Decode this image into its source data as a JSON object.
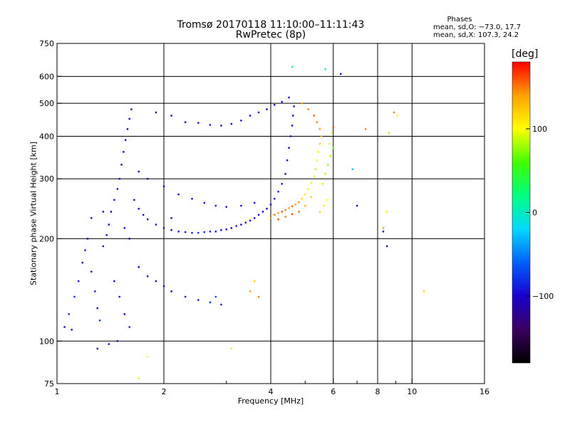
{
  "title": {
    "line1": "Tromsø 20170118 11:10:00–11:11:43",
    "line2": "RwPretec (8p)"
  },
  "phase_info": {
    "title": "Phases",
    "o_mode": "mean, sd,O: −73.0, 17.7",
    "x_mode": "mean, sd,X: 107.3, 24.2"
  },
  "colorbar": {
    "label": "[deg]",
    "ticks": [
      {
        "value": 100,
        "label": "100"
      },
      {
        "value": 0,
        "label": "0"
      },
      {
        "value": -100,
        "label": "−100"
      }
    ],
    "range": [
      -180,
      180
    ],
    "colors": [
      "#000000",
      "#3a0060",
      "#1a00d0",
      "#0060ff",
      "#00d8ff",
      "#00ff80",
      "#40ff00",
      "#ffff00",
      "#ffa000",
      "#ff0000"
    ]
  },
  "chart_data": {
    "type": "scatter",
    "xlabel": "Frequency [MHz]",
    "ylabel": "Stationary phase Virtual Height [km]",
    "xscale": "log",
    "yscale": "log",
    "xlim": [
      1,
      16
    ],
    "ylim": [
      75,
      750
    ],
    "xticks": [
      {
        "value": 1,
        "label": "1"
      },
      {
        "value": 2,
        "label": "2"
      },
      {
        "value": 4,
        "label": "4"
      },
      {
        "value": 6,
        "label": "6"
      },
      {
        "value": 8,
        "label": "8"
      },
      {
        "value": 10,
        "label": "10"
      },
      {
        "value": 16,
        "label": "16"
      }
    ],
    "xminor": [
      3,
      5,
      7,
      9
    ],
    "yticks": [
      {
        "value": 75,
        "label": "75"
      },
      {
        "value": 100,
        "label": "100"
      },
      {
        "value": 200,
        "label": "200"
      },
      {
        "value": 300,
        "label": "300"
      },
      {
        "value": 400,
        "label": "400"
      },
      {
        "value": 500,
        "label": "500"
      },
      {
        "value": 600,
        "label": "600"
      },
      {
        "value": 750,
        "label": "750"
      }
    ],
    "xgrid": [
      2,
      4,
      6,
      8,
      10
    ],
    "ygrid": [
      100,
      200,
      300,
      400,
      500,
      600
    ],
    "legend": "colorbar-right",
    "series": [
      {
        "mode": "O",
        "points": [
          [
            1.05,
            110,
            -110
          ],
          [
            1.08,
            120,
            -90
          ],
          [
            1.1,
            108,
            -100
          ],
          [
            1.12,
            135,
            -80
          ],
          [
            1.15,
            150,
            -110
          ],
          [
            1.18,
            170,
            -120
          ],
          [
            1.2,
            185,
            -95
          ],
          [
            1.22,
            200,
            -115
          ],
          [
            1.25,
            160,
            -105
          ],
          [
            1.28,
            140,
            -90
          ],
          [
            1.3,
            125,
            -100
          ],
          [
            1.32,
            115,
            -80
          ],
          [
            1.35,
            190,
            -110
          ],
          [
            1.38,
            205,
            -120
          ],
          [
            1.4,
            220,
            -100
          ],
          [
            1.42,
            240,
            -115
          ],
          [
            1.45,
            260,
            -105
          ],
          [
            1.48,
            280,
            -95
          ],
          [
            1.5,
            300,
            -110
          ],
          [
            1.52,
            330,
            -120
          ],
          [
            1.54,
            360,
            -100
          ],
          [
            1.56,
            390,
            -115
          ],
          [
            1.58,
            420,
            -105
          ],
          [
            1.6,
            450,
            -110
          ],
          [
            1.62,
            480,
            -120
          ],
          [
            1.45,
            150,
            -105
          ],
          [
            1.5,
            135,
            -95
          ],
          [
            1.55,
            120,
            -100
          ],
          [
            1.6,
            110,
            -90
          ],
          [
            1.48,
            100,
            -110
          ],
          [
            1.65,
            260,
            -115
          ],
          [
            1.7,
            245,
            -100
          ],
          [
            1.75,
            235,
            -110
          ],
          [
            1.8,
            228,
            -120
          ],
          [
            1.9,
            220,
            -105
          ],
          [
            2.0,
            215,
            -95
          ],
          [
            2.1,
            212,
            -110
          ],
          [
            2.2,
            210,
            -100
          ],
          [
            2.3,
            209,
            -90
          ],
          [
            2.4,
            208,
            -85
          ],
          [
            2.5,
            208,
            -80
          ],
          [
            2.6,
            209,
            -85
          ],
          [
            2.7,
            210,
            -90
          ],
          [
            2.8,
            210,
            -95
          ],
          [
            2.9,
            212,
            -100
          ],
          [
            3.0,
            213,
            -95
          ],
          [
            3.1,
            215,
            -100
          ],
          [
            3.2,
            218,
            -90
          ],
          [
            3.3,
            220,
            -95
          ],
          [
            3.4,
            223,
            -100
          ],
          [
            3.5,
            226,
            -95
          ],
          [
            3.6,
            230,
            -100
          ],
          [
            3.7,
            235,
            -105
          ],
          [
            3.8,
            240,
            -100
          ],
          [
            3.9,
            245,
            -110
          ],
          [
            4.0,
            252,
            -100
          ],
          [
            4.1,
            262,
            -105
          ],
          [
            4.2,
            275,
            -100
          ],
          [
            4.3,
            290,
            -110
          ],
          [
            4.4,
            310,
            -105
          ],
          [
            4.45,
            340,
            -100
          ],
          [
            4.5,
            370,
            -110
          ],
          [
            4.55,
            400,
            -105
          ],
          [
            4.6,
            430,
            -100
          ],
          [
            4.62,
            460,
            -110
          ],
          [
            4.65,
            490,
            -105
          ],
          [
            4.5,
            520,
            -100
          ],
          [
            4.3,
            505,
            -90
          ],
          [
            4.1,
            495,
            -95
          ],
          [
            3.9,
            480,
            -100
          ],
          [
            3.7,
            470,
            -105
          ],
          [
            3.5,
            460,
            -100
          ],
          [
            3.3,
            445,
            -95
          ],
          [
            3.1,
            435,
            -100
          ],
          [
            2.9,
            430,
            -105
          ],
          [
            2.7,
            432,
            -100
          ],
          [
            2.5,
            438,
            -95
          ],
          [
            2.3,
            440,
            -100
          ],
          [
            1.9,
            470,
            -110
          ],
          [
            2.1,
            460,
            -105
          ],
          [
            1.7,
            165,
            -110
          ],
          [
            1.8,
            155,
            -100
          ],
          [
            1.9,
            150,
            -105
          ],
          [
            2.0,
            145,
            -95
          ],
          [
            2.1,
            140,
            -100
          ],
          [
            2.3,
            135,
            -90
          ],
          [
            2.5,
            132,
            -95
          ],
          [
            2.7,
            130,
            -80
          ],
          [
            2.9,
            128,
            -85
          ],
          [
            2.8,
            135,
            -70
          ],
          [
            1.3,
            95,
            -100
          ],
          [
            1.4,
            98,
            -90
          ],
          [
            1.7,
            315,
            -105
          ],
          [
            1.8,
            300,
            -110
          ],
          [
            2.0,
            285,
            -95
          ],
          [
            2.2,
            270,
            -100
          ],
          [
            2.4,
            262,
            -105
          ],
          [
            2.6,
            255,
            -100
          ],
          [
            2.8,
            250,
            -90
          ],
          [
            3.0,
            248,
            -95
          ],
          [
            3.3,
            250,
            -100
          ],
          [
            3.6,
            255,
            -95
          ],
          [
            6.3,
            610,
            -110
          ],
          [
            7.0,
            250,
            -110
          ],
          [
            8.5,
            190,
            -130
          ],
          [
            8.3,
            210,
            -120
          ],
          [
            2.1,
            230,
            -105
          ],
          [
            1.6,
            200,
            -110
          ],
          [
            1.55,
            215,
            -100
          ],
          [
            1.35,
            240,
            -120
          ],
          [
            1.25,
            230,
            -110
          ]
        ]
      },
      {
        "mode": "X",
        "points": [
          [
            4.0,
            230,
            140
          ],
          [
            4.1,
            235,
            150
          ],
          [
            4.2,
            238,
            145
          ],
          [
            4.3,
            240,
            160
          ],
          [
            4.4,
            243,
            150
          ],
          [
            4.5,
            246,
            140
          ],
          [
            4.6,
            249,
            155
          ],
          [
            4.7,
            252,
            135
          ],
          [
            4.8,
            256,
            145
          ],
          [
            4.9,
            262,
            120
          ],
          [
            5.0,
            270,
            110
          ],
          [
            5.1,
            280,
            100
          ],
          [
            5.2,
            292,
            95
          ],
          [
            5.3,
            305,
            90
          ],
          [
            5.35,
            320,
            85
          ],
          [
            5.4,
            340,
            100
          ],
          [
            5.45,
            360,
            110
          ],
          [
            5.5,
            380,
            120
          ],
          [
            5.55,
            400,
            130
          ],
          [
            5.5,
            420,
            140
          ],
          [
            5.4,
            440,
            150
          ],
          [
            5.3,
            460,
            160
          ],
          [
            5.1,
            480,
            150
          ],
          [
            4.9,
            500,
            140
          ],
          [
            5.0,
            250,
            130
          ],
          [
            5.2,
            265,
            120
          ],
          [
            4.8,
            240,
            155
          ],
          [
            4.6,
            236,
            165
          ],
          [
            4.4,
            232,
            150
          ],
          [
            4.2,
            228,
            160
          ],
          [
            5.6,
            290,
            90
          ],
          [
            5.7,
            310,
            80
          ],
          [
            5.8,
            330,
            75
          ],
          [
            5.9,
            350,
            85
          ],
          [
            5.75,
            260,
            100
          ],
          [
            5.65,
            250,
            110
          ],
          [
            5.5,
            240,
            120
          ],
          [
            6.0,
            370,
            70
          ],
          [
            5.85,
            380,
            95
          ],
          [
            5.95,
            410,
            100
          ],
          [
            3.5,
            140,
            140
          ],
          [
            3.6,
            150,
            120
          ],
          [
            3.7,
            135,
            150
          ],
          [
            6.0,
            425,
            160
          ],
          [
            7.4,
            420,
            150
          ],
          [
            10.8,
            140,
            120
          ],
          [
            1.7,
            78,
            90
          ],
          [
            3.1,
            95,
            110
          ],
          [
            1.8,
            90,
            100
          ],
          [
            6.8,
            320,
            -30
          ],
          [
            8.6,
            410,
            80
          ],
          [
            8.9,
            470,
            150
          ],
          [
            8.5,
            240,
            110
          ],
          [
            8.3,
            215,
            140
          ],
          [
            4.6,
            640,
            30
          ],
          [
            5.7,
            630,
            0
          ],
          [
            9.1,
            460,
            100
          ]
        ]
      }
    ]
  }
}
